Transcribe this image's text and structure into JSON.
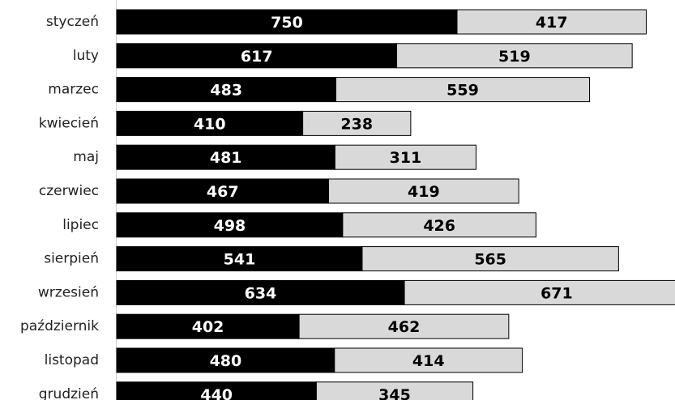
{
  "chart_data": {
    "type": "bar",
    "orientation": "horizontal",
    "stacked": true,
    "categories": [
      "styczeń",
      "luty",
      "marzec",
      "kwiecień",
      "maj",
      "czerwiec",
      "lipiec",
      "sierpień",
      "wrzesień",
      "październik",
      "listopad",
      "grudzień"
    ],
    "series": [
      {
        "values": [
          750,
          617,
          483,
          410,
          481,
          467,
          498,
          541,
          634,
          402,
          480,
          440
        ],
        "color": "#000000",
        "label_color": "#ffffff"
      },
      {
        "values": [
          417,
          519,
          559,
          238,
          311,
          419,
          426,
          565,
          671,
          462,
          414,
          345
        ],
        "color": "#d9d9d9",
        "label_color": "#000000"
      }
    ],
    "data_labels": true,
    "grid": false,
    "legend": "none",
    "title": "",
    "xlabel": "",
    "ylabel": ""
  }
}
